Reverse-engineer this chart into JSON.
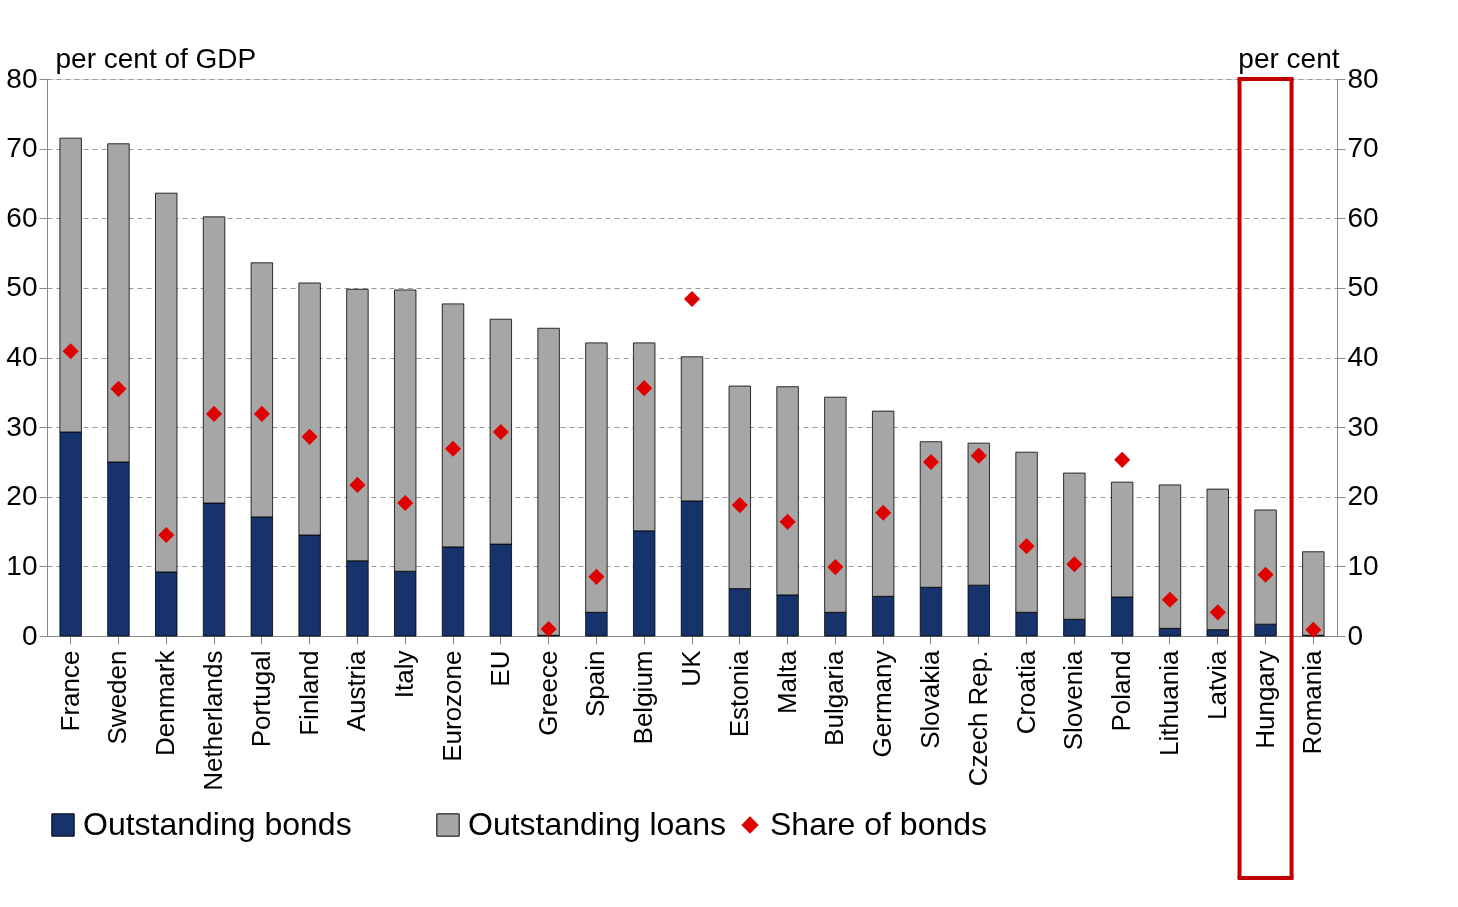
{
  "chart_data": {
    "type": "bar",
    "stacked": true,
    "ylabel": "per cent of GDP",
    "y2label": "per cent",
    "categories": [
      "France",
      "Sweden",
      "Denmark",
      "Netherlands",
      "Portugal",
      "Finland",
      "Austria",
      "Italy",
      "Eurozone",
      "EU",
      "Greece",
      "Spain",
      "Belgium",
      "UK",
      "Estonia",
      "Malta",
      "Bulgaria",
      "Germany",
      "Slovakia",
      "Czech Rep.",
      "Croatia",
      "Slovenia",
      "Poland",
      "Lithuania",
      "Latvia",
      "Hungary",
      "Romania"
    ],
    "series": [
      {
        "name": "Outstanding bonds",
        "color": "#17336b",
        "values": [
          29.3,
          25.0,
          9.2,
          19.1,
          17.1,
          14.5,
          10.8,
          9.3,
          12.8,
          13.2,
          0.1,
          3.4,
          15.1,
          19.4,
          6.8,
          5.9,
          3.4,
          5.7,
          7.0,
          7.3,
          3.4,
          2.4,
          5.6,
          1.1,
          0.9,
          1.7,
          0.1
        ]
      },
      {
        "name": "Outstanding loans",
        "color": "#a6a6a6",
        "values": [
          42.2,
          45.7,
          54.4,
          41.1,
          36.5,
          36.2,
          39.0,
          40.4,
          34.9,
          32.3,
          44.1,
          38.7,
          27.0,
          20.7,
          29.1,
          29.9,
          30.9,
          26.6,
          20.9,
          20.4,
          23.0,
          21.0,
          16.5,
          20.6,
          20.2,
          16.4,
          12.0
        ]
      },
      {
        "name": "Share of bonds",
        "type": "scatter",
        "axis": "y2",
        "marker": "diamond",
        "color": "#e00000",
        "values": [
          40.9,
          35.5,
          14.5,
          31.9,
          31.9,
          28.6,
          21.7,
          19.1,
          26.9,
          29.3,
          1.0,
          8.5,
          35.6,
          48.4,
          18.8,
          16.4,
          9.9,
          17.7,
          25.0,
          25.9,
          12.9,
          10.3,
          25.3,
          5.2,
          3.4,
          8.8,
          0.9
        ]
      }
    ],
    "ylim": [
      0,
      80
    ],
    "yticks": [
      0,
      10,
      20,
      30,
      40,
      50,
      60,
      70,
      80
    ],
    "y2lim": [
      0,
      80
    ],
    "y2ticks": [
      0,
      10,
      20,
      30,
      40,
      50,
      60,
      70,
      80
    ],
    "grid": "y",
    "legend": "bottom"
  }
}
